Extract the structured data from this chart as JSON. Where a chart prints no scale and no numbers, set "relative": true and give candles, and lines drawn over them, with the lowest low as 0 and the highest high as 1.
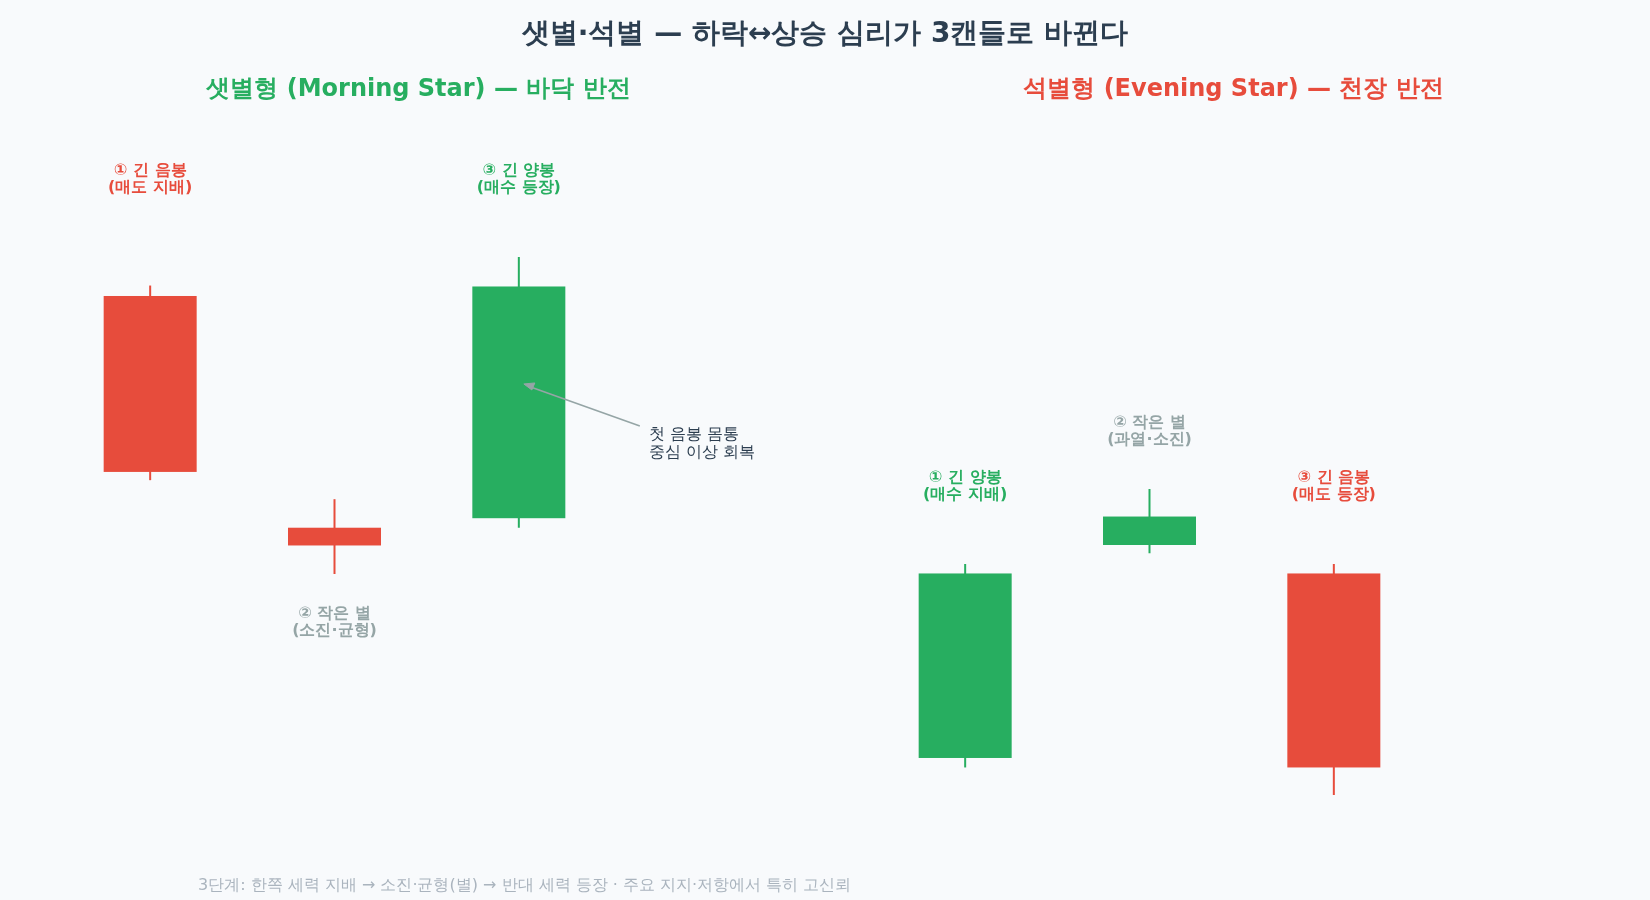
{
  "chart_data": [
    {
      "type": "candlestick",
      "relative": true,
      "title": "샛별·석별 — 하락↔상승 심리가 3캔들로 바뀐다",
      "subtitle": "샛별형 (Morning Star) — 바닥 반전",
      "categories": [
        null,
        null,
        null
      ],
      "ohlc": [
        [
          0.877,
          0.91,
          0.296,
          0.322
        ],
        [
          0.146,
          0.236,
          0.0,
          0.09
        ],
        [
          0.176,
          1.0,
          0.146,
          0.907
        ]
      ],
      "colors": [
        "#e74c3c",
        "#e74c3c",
        "#27ae60"
      ],
      "annotations": [
        "① 긴 음봉\n(매도 지배)",
        "② 작은 별\n(소진·균형)",
        "③ 긴 양봉\n(매수 등장)",
        "첫 음봉 몸통\n중심 이상 회복"
      ]
    },
    {
      "type": "candlestick",
      "relative": true,
      "subtitle": "석별형 (Evening Star) — 천장 반전",
      "categories": [
        null,
        null,
        null
      ],
      "ohlc": [
        [
          0.121,
          0.755,
          0.09,
          0.724
        ],
        [
          0.817,
          1.0,
          0.79,
          0.91
        ],
        [
          0.724,
          0.755,
          0.0,
          0.09
        ]
      ],
      "colors": [
        "#27ae60",
        "#27ae60",
        "#e74c3c"
      ],
      "annotations": [
        "① 긴 양봉\n(매수 지배)",
        "② 작은 별\n(과열·소진)",
        "③ 긴 음봉\n(매도 등장)",
        "3단계: 한쪽 세력 지배 → 소진·균형(별) → 반대 세력 등장 · 주요 지지·저항에서 특히 고신뢰"
      ]
    }
  ]
}
